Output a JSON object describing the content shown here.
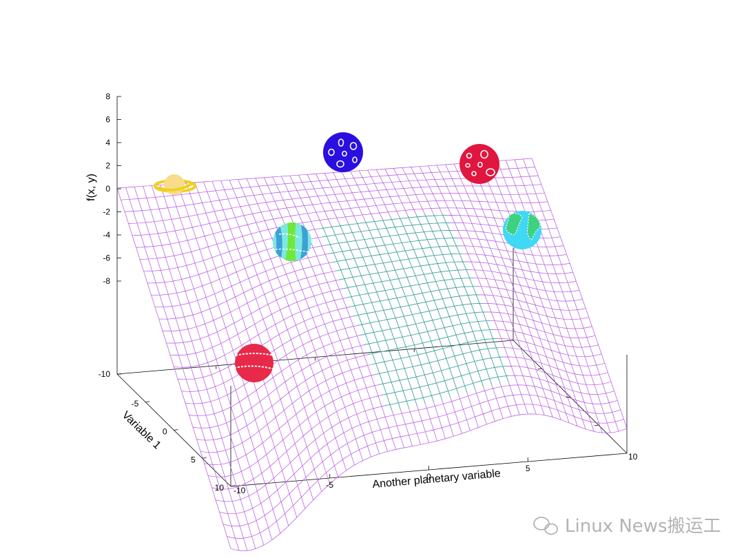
{
  "chart_data": {
    "type": "surface",
    "title": "",
    "xlabel": "Another planetary variable",
    "ylabel": "Variable 1",
    "zlabel": "f(x, y)",
    "x_range": [
      -10,
      10
    ],
    "y_range": [
      -10,
      10
    ],
    "z_ticks": [
      "8",
      "6",
      "4",
      "2",
      "0",
      "-2",
      "-4",
      "-6",
      "-8",
      "-10"
    ],
    "x_ticks": [
      "-10",
      "-5",
      "0",
      "5",
      "10"
    ],
    "y_ticks": [
      "-10",
      "-5",
      "0",
      "5",
      "10"
    ],
    "style": "wireframe mesh",
    "colors": {
      "mesh_top": "#b44ee0",
      "mesh_bottom": "#1fb08f",
      "axis": "#000000"
    },
    "decorations": [
      {
        "name": "saturn-icon",
        "colors": [
          "#f7dc8a",
          "#f0d020"
        ]
      },
      {
        "name": "blue-moon-icon",
        "colors": [
          "#2a0fe0",
          "#ffffff"
        ]
      },
      {
        "name": "red-moon-icon",
        "colors": [
          "#e0163f",
          "#ffffff"
        ]
      },
      {
        "name": "neptune-icon",
        "colors": [
          "#7ce8e0",
          "#3f9fd8",
          "#6fe83a"
        ]
      },
      {
        "name": "earth-icon",
        "colors": [
          "#3fd8f5",
          "#3fd080"
        ]
      },
      {
        "name": "mars-icon",
        "colors": [
          "#e8294a",
          "#ffffff"
        ]
      }
    ]
  },
  "watermark": {
    "text": "Linux News搬运工",
    "icon": "wechat-icon"
  }
}
